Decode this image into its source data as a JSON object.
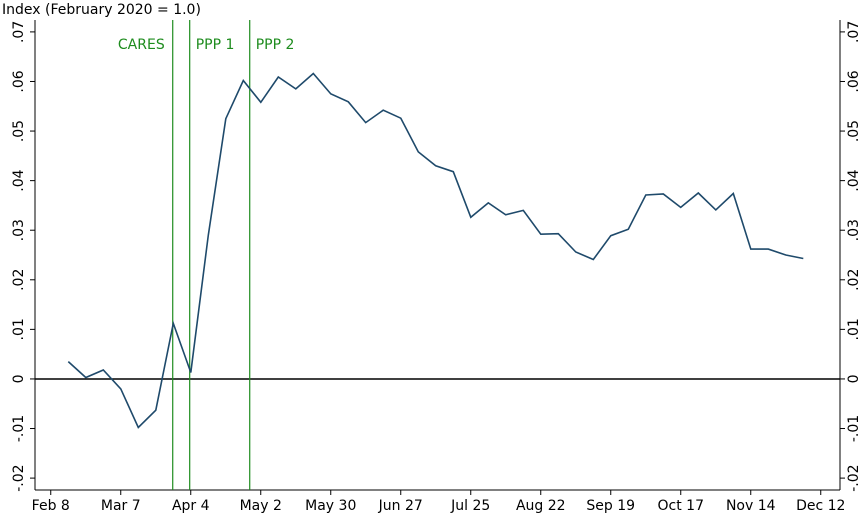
{
  "chart_data": {
    "type": "line",
    "title": "Index (February 2020 = 1.0)",
    "categories": [
      "Feb 8",
      null,
      null,
      null,
      "Mar 7",
      null,
      null,
      null,
      "Apr 4",
      null,
      null,
      null,
      "May 2",
      null,
      null,
      null,
      "May 30",
      null,
      null,
      null,
      "Jun 27",
      null,
      null,
      null,
      "Jul 25",
      null,
      null,
      null,
      "Aug 22",
      null,
      null,
      null,
      "Sep 19",
      null,
      null,
      null,
      "Oct 17",
      null,
      null,
      null,
      "Nov 14",
      null,
      null,
      null,
      "Dec 12"
    ],
    "series": [
      {
        "color": "#1f4a6b",
        "values": [
          null,
          0.0035,
          0.0003,
          0.0018,
          -0.002,
          -0.0098,
          -0.0063,
          0.0112,
          0.0013,
          0.029,
          0.0525,
          0.0602,
          0.0558,
          0.0609,
          0.0585,
          0.0616,
          0.0575,
          0.0559,
          0.0517,
          0.0542,
          0.0526,
          0.0458,
          0.043,
          0.0418,
          0.0326,
          0.0355,
          0.0331,
          0.034,
          0.0292,
          0.0293,
          0.0256,
          0.0241,
          0.0289,
          0.0302,
          0.0371,
          0.0373,
          0.0346,
          0.0375,
          0.0341,
          0.0374,
          0.0262,
          0.0262,
          0.025,
          0.0243,
          null
        ]
      }
    ],
    "xlim": [
      -0.9,
      45.1
    ],
    "ylim": [
      -0.0224,
      0.0724
    ],
    "yticks": [
      {
        "value": -0.02,
        "label": "-.02"
      },
      {
        "value": -0.01,
        "label": "-.01"
      },
      0,
      {
        "value": 0.01,
        "label": ".01"
      },
      {
        "value": 0.02,
        "label": ".02"
      },
      {
        "value": 0.03,
        "label": ".03"
      },
      {
        "value": 0.04,
        "label": ".04"
      },
      {
        "value": 0.05,
        "label": ".05"
      },
      {
        "value": 0.06,
        "label": ".06"
      },
      {
        "value": 0.07,
        "label": ".07"
      }
    ],
    "annotations": [
      {
        "label": "CARES",
        "x": 6.97,
        "color": "#1e8c1e"
      },
      {
        "label": "PPP 1",
        "x": 7.94,
        "color": "#1e8c1e"
      },
      {
        "label": "PPP 2",
        "x": 11.37,
        "color": "#1e8c1e"
      }
    ]
  }
}
